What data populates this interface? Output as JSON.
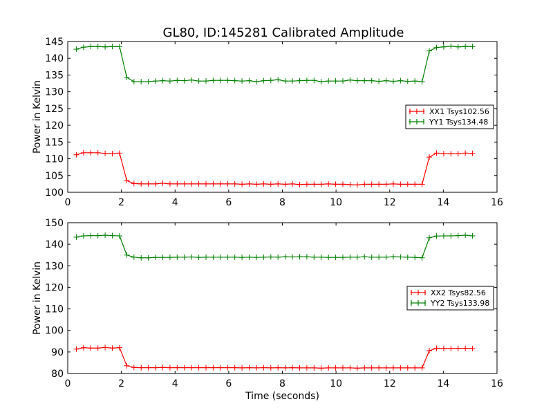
{
  "title": "GL80, ID:145281 Calibrated Amplitude",
  "chart_data": [
    {
      "type": "line",
      "xlabel": "",
      "ylabel": "Power in Kelvin",
      "xlim": [
        0,
        16
      ],
      "ylim": [
        100,
        145
      ],
      "xticks": [
        0,
        2,
        4,
        6,
        8,
        10,
        12,
        14,
        16
      ],
      "yticks": [
        100,
        105,
        110,
        115,
        120,
        125,
        130,
        135,
        140,
        145
      ],
      "legend_position": "center-right",
      "x_start": 0.32,
      "x_step": 0.2685,
      "series": [
        {
          "name": "XX1 Tsys102.56",
          "color": "#ff0000",
          "values": [
            111.2,
            111.8,
            111.8,
            111.8,
            111.6,
            111.5,
            111.7,
            103.5,
            102.6,
            102.5,
            102.5,
            102.5,
            102.7,
            102.5,
            102.5,
            102.5,
            102.5,
            102.5,
            102.5,
            102.5,
            102.5,
            102.5,
            102.5,
            102.4,
            102.5,
            102.4,
            102.5,
            102.4,
            102.5,
            102.4,
            102.5,
            102.3,
            102.4,
            102.4,
            102.4,
            102.5,
            102.4,
            102.4,
            102.3,
            102.2,
            102.4,
            102.4,
            102.4,
            102.4,
            102.5,
            102.4,
            102.4,
            102.4,
            102.4,
            110.5,
            111.7,
            111.5,
            111.5,
            111.5,
            111.7,
            111.6
          ]
        },
        {
          "name": "YY1 Tsys134.48",
          "color": "#008000",
          "values": [
            142.7,
            143.3,
            143.5,
            143.5,
            143.4,
            143.5,
            143.5,
            134.3,
            133.0,
            133.0,
            133.0,
            133.2,
            133.3,
            133.2,
            133.4,
            133.3,
            133.5,
            133.2,
            133.2,
            133.4,
            133.4,
            133.4,
            133.3,
            133.2,
            133.3,
            133.0,
            133.3,
            133.4,
            133.6,
            133.2,
            133.2,
            133.3,
            133.4,
            133.4,
            133.0,
            133.2,
            133.2,
            133.2,
            133.5,
            133.3,
            133.3,
            133.3,
            133.1,
            133.3,
            133.1,
            133.3,
            133.1,
            133.2,
            133.0,
            142.2,
            143.2,
            143.4,
            143.6,
            143.4,
            143.5,
            143.5
          ]
        }
      ]
    },
    {
      "type": "line",
      "xlabel": "Time (seconds)",
      "ylabel": "Power in Kelvin",
      "xlim": [
        0,
        16
      ],
      "ylim": [
        80,
        150
      ],
      "xticks": [
        0,
        2,
        4,
        6,
        8,
        10,
        12,
        14,
        16
      ],
      "yticks": [
        80,
        90,
        100,
        110,
        120,
        130,
        140,
        150
      ],
      "legend_position": "center-right",
      "x_start": 0.32,
      "x_step": 0.2685,
      "series": [
        {
          "name": "XX2 Tsys82.56",
          "color": "#ff0000",
          "values": [
            91.3,
            92.0,
            91.8,
            91.8,
            92.1,
            91.8,
            92.0,
            83.6,
            82.8,
            82.7,
            82.7,
            82.7,
            82.8,
            82.7,
            82.7,
            82.7,
            82.7,
            82.7,
            82.7,
            82.7,
            82.7,
            82.7,
            82.7,
            82.6,
            82.7,
            82.6,
            82.7,
            82.6,
            82.7,
            82.6,
            82.7,
            82.6,
            82.6,
            82.6,
            82.5,
            82.6,
            82.6,
            82.6,
            82.6,
            82.5,
            82.6,
            82.6,
            82.6,
            82.6,
            82.6,
            82.6,
            82.6,
            82.6,
            82.6,
            90.6,
            91.7,
            91.6,
            91.6,
            91.7,
            91.7,
            91.6
          ]
        },
        {
          "name": "YY2 Tsys133.98",
          "color": "#008000",
          "values": [
            143.3,
            143.9,
            144.0,
            144.0,
            144.2,
            144.0,
            143.9,
            135.0,
            134.0,
            133.7,
            133.7,
            133.9,
            133.9,
            133.9,
            134.0,
            134.0,
            134.1,
            133.9,
            134.0,
            134.0,
            134.0,
            134.0,
            134.0,
            133.9,
            134.0,
            133.9,
            134.0,
            134.1,
            134.0,
            134.2,
            134.1,
            134.2,
            134.2,
            134.0,
            134.0,
            133.9,
            133.9,
            133.9,
            134.0,
            134.0,
            134.2,
            134.0,
            134.0,
            134.0,
            134.2,
            134.1,
            134.0,
            133.9,
            133.7,
            143.0,
            143.8,
            143.9,
            143.9,
            144.0,
            144.2,
            143.9
          ]
        }
      ]
    }
  ]
}
